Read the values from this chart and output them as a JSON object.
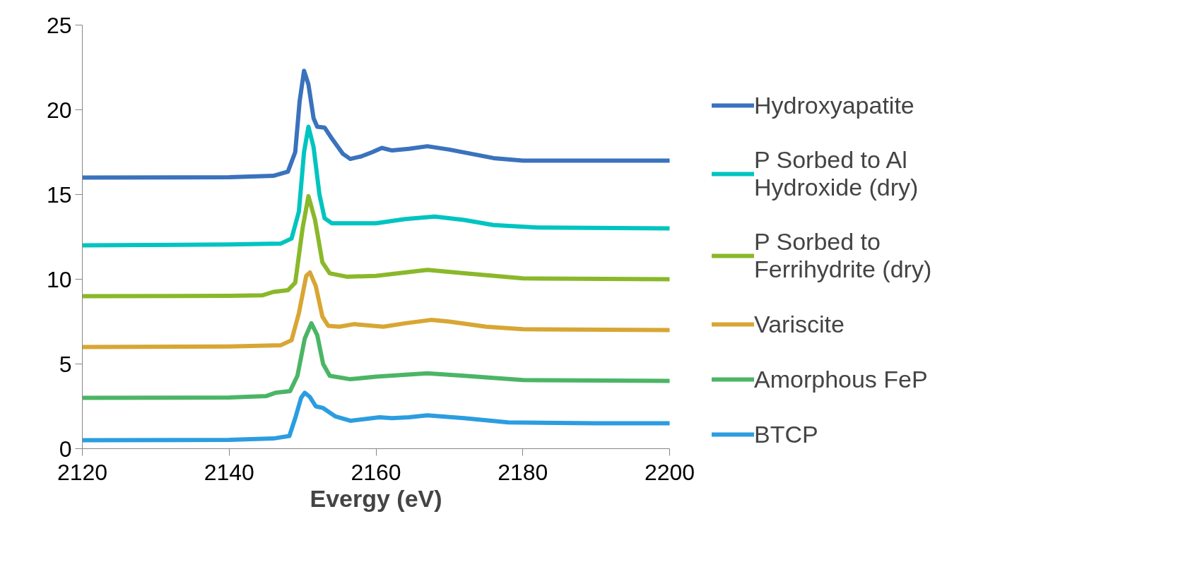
{
  "chart_data": {
    "type": "line",
    "xlabel": "Evergy (eV)",
    "xlim": [
      2120,
      2200
    ],
    "xticks": [
      2120,
      2140,
      2160,
      2180,
      2200
    ],
    "ylim": [
      0,
      25
    ],
    "yticks": [
      0,
      5,
      10,
      15,
      20,
      25
    ],
    "grid": false,
    "legend": "right",
    "marker": "none",
    "line_style": "solid",
    "series": [
      {
        "name": "Hydroxyapatite",
        "color": "#3a72bd",
        "x": [
          2120,
          2140,
          2146,
          2148,
          2149,
          2149.6,
          2150.2,
          2150.8,
          2151.5,
          2152,
          2153,
          2154,
          2155.5,
          2156.5,
          2158,
          2159.5,
          2160.8,
          2162.2,
          2164.5,
          2167,
          2170,
          2176,
          2180,
          2190,
          2200
        ],
        "values": [
          16,
          16.02,
          16.1,
          16.35,
          17.5,
          20.5,
          22.3,
          21.5,
          19.5,
          19.0,
          18.95,
          18.3,
          17.4,
          17.1,
          17.25,
          17.5,
          17.75,
          17.6,
          17.7,
          17.85,
          17.65,
          17.15,
          17.0,
          17.0,
          17.0
        ]
      },
      {
        "name": "P Sorbed to Al Hydroxide (dry)",
        "color": "#00c4c0",
        "x": [
          2120,
          2140,
          2147,
          2148.5,
          2149.5,
          2150.2,
          2150.8,
          2151.5,
          2152.3,
          2153,
          2154,
          2160,
          2164,
          2168,
          2172,
          2176,
          2182,
          2200
        ],
        "values": [
          12,
          12.05,
          12.1,
          12.4,
          14,
          17.5,
          19.0,
          17.8,
          15,
          13.6,
          13.3,
          13.3,
          13.55,
          13.7,
          13.5,
          13.2,
          13.05,
          13.0
        ]
      },
      {
        "name": "P Sorbed to Ferrihydrite (dry)",
        "color": "#8ab82a",
        "x": [
          2120,
          2140,
          2144.5,
          2146,
          2148,
          2149,
          2150,
          2150.8,
          2151.7,
          2152.7,
          2153.7,
          2156,
          2160,
          2167,
          2172,
          2180,
          2200
        ],
        "values": [
          9,
          9.02,
          9.05,
          9.25,
          9.35,
          9.8,
          13,
          14.9,
          13.5,
          11,
          10.35,
          10.15,
          10.2,
          10.55,
          10.35,
          10.05,
          10.0
        ]
      },
      {
        "name": "Variscite",
        "color": "#d8a634",
        "x": [
          2120,
          2140,
          2147,
          2148.5,
          2149.5,
          2150.5,
          2151,
          2151.8,
          2152.7,
          2153.5,
          2155,
          2157,
          2161,
          2164,
          2167.5,
          2170,
          2175,
          2180,
          2200
        ],
        "values": [
          6,
          6.03,
          6.1,
          6.4,
          8,
          10.2,
          10.4,
          9.6,
          7.8,
          7.25,
          7.2,
          7.35,
          7.2,
          7.4,
          7.6,
          7.5,
          7.2,
          7.05,
          7.0
        ]
      },
      {
        "name": "Amorphous FeP",
        "color": "#4bb566",
        "x": [
          2120,
          2140,
          2145,
          2146.3,
          2148.3,
          2149.3,
          2150.3,
          2151.2,
          2152,
          2152.8,
          2153.7,
          2156.5,
          2160,
          2167,
          2172,
          2180,
          2200
        ],
        "values": [
          3,
          3.02,
          3.1,
          3.3,
          3.4,
          4.3,
          6.5,
          7.4,
          6.7,
          5,
          4.3,
          4.1,
          4.25,
          4.45,
          4.3,
          4.05,
          4.0
        ]
      },
      {
        "name": "BTCP",
        "color": "#2b9de0",
        "x": [
          2120,
          2140,
          2146,
          2148.2,
          2149,
          2149.8,
          2150.3,
          2151,
          2151.8,
          2152.8,
          2154.5,
          2156.5,
          2158.5,
          2160.5,
          2162.2,
          2164.5,
          2167,
          2172,
          2178,
          2190,
          2200
        ],
        "values": [
          0.5,
          0.52,
          0.6,
          0.75,
          1.8,
          3.0,
          3.3,
          3.05,
          2.5,
          2.4,
          1.9,
          1.65,
          1.75,
          1.85,
          1.8,
          1.85,
          1.97,
          1.8,
          1.55,
          1.5,
          1.5
        ]
      }
    ]
  }
}
